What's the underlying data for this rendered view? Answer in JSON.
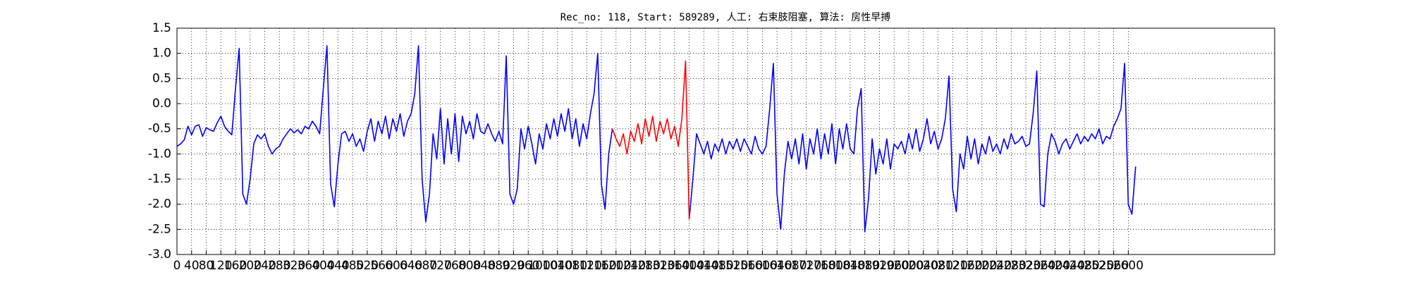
{
  "chart_data": {
    "type": "line",
    "title": "Rec_no: 118, Start: 589289, 人工: 右束肢阻塞, 算法: 房性早搏",
    "x": [
      0,
      10,
      20,
      30,
      40,
      50,
      60,
      70,
      80,
      90,
      100,
      110,
      120,
      130,
      140,
      150,
      160,
      170,
      180,
      190,
      200,
      210,
      220,
      230,
      240,
      250,
      260,
      270,
      280,
      290,
      300,
      310,
      320,
      330,
      340,
      350,
      360,
      370,
      380,
      390,
      400,
      410,
      420,
      430,
      440,
      450,
      460,
      470,
      480,
      490,
      500,
      510,
      520,
      530,
      540,
      550,
      560,
      570,
      580,
      590,
      600,
      610,
      620,
      630,
      640,
      650,
      660,
      670,
      680,
      690,
      700,
      710,
      720,
      730,
      740,
      750,
      760,
      770,
      780,
      790,
      800,
      810,
      820,
      830,
      840,
      850,
      860,
      870,
      880,
      890,
      900,
      910,
      920,
      930,
      940,
      950,
      960,
      970,
      980,
      990,
      1000,
      1010,
      1020,
      1030,
      1040,
      1050,
      1060,
      1070,
      1080,
      1090,
      1100,
      1110,
      1120,
      1130,
      1140,
      1150,
      1160,
      1170,
      1180,
      1190,
      1200,
      1210,
      1220,
      1230,
      1240,
      1250,
      1260,
      1270,
      1280,
      1290,
      1300,
      1310,
      1320,
      1330,
      1340,
      1350,
      1360,
      1370,
      1380,
      1390,
      1400,
      1410,
      1420,
      1430,
      1440,
      1450,
      1460,
      1470,
      1480,
      1490,
      1500,
      1510,
      1520,
      1530,
      1540,
      1550,
      1560,
      1570,
      1580,
      1590,
      1600,
      1610,
      1620,
      1630,
      1640,
      1650,
      1660,
      1670,
      1680,
      1690,
      1700,
      1710,
      1720,
      1730,
      1740,
      1750,
      1760,
      1770,
      1780,
      1790,
      1800,
      1810,
      1820,
      1830,
      1840,
      1850,
      1860,
      1870,
      1880,
      1890,
      1900,
      1910,
      1920,
      1930,
      1940,
      1950,
      1960,
      1970,
      1980,
      1990,
      2000,
      2010,
      2020,
      2030,
      2040,
      2050,
      2060,
      2070,
      2080,
      2090,
      2100,
      2110,
      2120,
      2130,
      2140,
      2150,
      2160,
      2170,
      2180,
      2190,
      2200,
      2210,
      2220,
      2230,
      2240,
      2250,
      2260,
      2270,
      2280,
      2290,
      2300,
      2310,
      2320,
      2330,
      2340,
      2350,
      2360,
      2370,
      2380,
      2390,
      2400,
      2410,
      2420,
      2430,
      2440,
      2450,
      2460,
      2470,
      2480,
      2490,
      2500,
      2510,
      2520,
      2530,
      2540,
      2550,
      2560,
      2570,
      2580,
      2590,
      2600,
      2610,
      2620
    ],
    "series": [
      {
        "color": "#0000ff",
        "values": [
          -0.85,
          -0.8,
          -0.72,
          -0.45,
          -0.62,
          -0.45,
          -0.42,
          -0.65,
          -0.48,
          -0.52,
          -0.55,
          -0.38,
          -0.25,
          -0.45,
          -0.55,
          -0.62,
          0.3,
          1.1,
          -1.8,
          -2.0,
          -1.5,
          -0.8,
          -0.62,
          -0.7,
          -0.6,
          -0.85,
          -1.0,
          -0.9,
          -0.85,
          -0.7,
          -0.6,
          -0.5,
          -0.58,
          -0.52,
          -0.6,
          -0.45,
          -0.5,
          -0.35,
          -0.45,
          -0.6,
          0.3,
          1.15,
          -1.6,
          -2.05,
          -1.2,
          -0.6,
          -0.55,
          -0.75,
          -0.6,
          -0.85,
          -0.7,
          -0.95,
          -0.55,
          -0.3,
          -0.75,
          -0.35,
          -0.6,
          -0.25,
          -0.7,
          -0.3,
          -0.55,
          -0.2,
          -0.65,
          -0.35,
          -0.2,
          0.2,
          1.15,
          -1.5,
          -2.35,
          -1.8,
          -0.6,
          -1.1,
          -0.1,
          -1.2,
          -0.3,
          -1.0,
          -0.2,
          -1.15,
          -0.25,
          -0.6,
          -0.35,
          -0.7,
          -0.2,
          -0.55,
          -0.6,
          -0.4,
          -0.6,
          -0.75,
          -0.55,
          -0.8,
          0.95,
          -1.8,
          -2.0,
          -1.7,
          -0.5,
          -0.9,
          -0.45,
          -0.8,
          -1.2,
          -0.6,
          -0.9,
          -0.4,
          -0.7,
          -0.3,
          -0.65,
          -0.2,
          -0.55,
          -0.1,
          -0.7,
          -0.3,
          -0.85,
          -0.4,
          -0.7,
          -0.2,
          0.2,
          1.0,
          -1.6,
          -2.1,
          -1.0,
          -0.5,
          null,
          null,
          null,
          null,
          null,
          null,
          null,
          null,
          null,
          null,
          null,
          null,
          null,
          null,
          null,
          null,
          null,
          null,
          null,
          null,
          -2.3,
          -1.5,
          -0.6,
          -0.8,
          -1.0,
          -0.75,
          -1.1,
          -0.8,
          -0.95,
          -0.7,
          -1.0,
          -0.75,
          -0.9,
          -0.7,
          -0.95,
          -0.7,
          -0.85,
          -1.0,
          -0.65,
          -0.9,
          -1.0,
          -0.85,
          -0.1,
          0.8,
          -1.8,
          -2.5,
          -1.4,
          -0.75,
          -1.1,
          -0.7,
          -1.2,
          -0.6,
          -1.3,
          -0.7,
          -1.0,
          -0.5,
          -1.1,
          -0.6,
          -1.0,
          -0.4,
          -1.2,
          -0.5,
          -0.9,
          -0.4,
          -0.9,
          -1.0,
          -0.1,
          0.3,
          -2.55,
          -1.9,
          -0.7,
          -1.4,
          -0.9,
          -1.2,
          -0.7,
          -1.3,
          -0.8,
          -0.9,
          -0.75,
          -1.0,
          -0.6,
          -0.9,
          -0.5,
          -0.95,
          -0.7,
          -0.3,
          -0.8,
          -0.55,
          -0.9,
          -0.7,
          -0.3,
          0.55,
          -1.7,
          -2.15,
          -1.0,
          -1.3,
          -0.65,
          -1.1,
          -0.7,
          -1.2,
          -0.8,
          -1.0,
          -0.65,
          -0.95,
          -0.8,
          -1.0,
          -0.7,
          -0.9,
          -0.6,
          -0.8,
          -0.75,
          -0.65,
          -0.85,
          -0.8,
          -0.2,
          0.65,
          -2.0,
          -2.05,
          -1.0,
          -0.6,
          -0.75,
          -1.0,
          -0.8,
          -0.7,
          -0.9,
          -0.75,
          -0.6,
          -0.8,
          -0.65,
          -0.75,
          -0.6,
          -0.7,
          -0.5,
          -0.8,
          -0.65,
          -0.7,
          -0.45,
          -0.3,
          -0.1,
          0.8,
          -2.0,
          -2.2,
          -1.25
        ]
      },
      {
        "color": "#ff0000",
        "x": [
          1190,
          1200,
          1210,
          1220,
          1230,
          1240,
          1250,
          1260,
          1270,
          1280,
          1290,
          1300,
          1310,
          1320,
          1330,
          1340,
          1350,
          1360,
          1370,
          1380,
          1390,
          1400
        ],
        "values": [
          -0.5,
          -0.7,
          -0.85,
          -0.6,
          -1.0,
          -0.55,
          -0.75,
          -0.4,
          -0.8,
          -0.3,
          -0.65,
          -0.25,
          -0.75,
          -0.35,
          -0.6,
          -0.3,
          -0.7,
          -0.45,
          -0.85,
          -0.3,
          0.85,
          -2.3
        ]
      }
    ],
    "xlim": [
      0,
      3000
    ],
    "xticks": [
      0,
      40,
      80,
      120,
      160,
      200,
      240,
      280,
      320,
      360,
      400,
      440,
      480,
      520,
      560,
      600,
      640,
      680,
      720,
      760,
      800,
      840,
      880,
      920,
      960,
      1000,
      1040,
      1080,
      1120,
      1160,
      1200,
      1240,
      1280,
      1320,
      1360,
      1400,
      1440,
      1480,
      1520,
      1560,
      1600,
      1640,
      1680,
      1720,
      1760,
      1800,
      1840,
      1880,
      1920,
      1960,
      2000,
      2040,
      2080,
      2120,
      2160,
      2200,
      2240,
      2280,
      2320,
      2360,
      2400,
      2440,
      2480,
      2520,
      2560,
      2600
    ],
    "ylim": [
      -3,
      1.5
    ],
    "yticks": [
      {
        "value": -3,
        "label": "-3.0"
      },
      -2.5,
      {
        "value": -2,
        "label": "-2.0"
      },
      -1.5,
      {
        "value": -1,
        "label": "-1.0"
      },
      -0.5,
      {
        "value": 0,
        "label": "0.0"
      },
      0.5,
      {
        "value": 1,
        "label": "1.0"
      },
      1.5
    ],
    "grid": true
  }
}
